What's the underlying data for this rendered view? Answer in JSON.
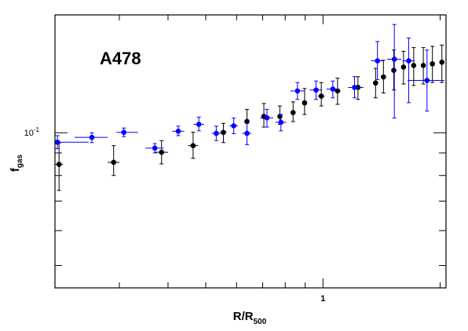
{
  "chart_data": {
    "type": "scatter",
    "title": "A478",
    "xlabel": {
      "main": "R/R",
      "sub": "500"
    },
    "ylabel": {
      "main": "f",
      "sub": "gas"
    },
    "x_scale": "log",
    "y_scale": "log",
    "xlim": [
      0.205,
      2.07
    ],
    "ylim": [
      0.0445,
      0.185
    ],
    "x_ticks": [
      {
        "value": 1,
        "label": "1"
      }
    ],
    "y_ticks": [
      {
        "value": 0.1,
        "label": "10",
        "exp": "-1"
      }
    ],
    "grid": false,
    "series": [
      {
        "color": "#000000",
        "points": [
          {
            "x": 0.21,
            "xlo": 0.205,
            "xhi": 0.215,
            "y": 0.0848,
            "ylo": 0.074,
            "yhi": 0.0948
          },
          {
            "x": 0.29,
            "xlo": 0.28,
            "xhi": 0.3,
            "y": 0.0857,
            "ylo": 0.08,
            "yhi": 0.0935
          },
          {
            "x": 0.385,
            "xlo": 0.37,
            "xhi": 0.4,
            "y": 0.0903,
            "ylo": 0.085,
            "yhi": 0.096
          },
          {
            "x": 0.464,
            "xlo": 0.45,
            "xhi": 0.478,
            "y": 0.0935,
            "ylo": 0.0875,
            "yhi": 0.1003
          },
          {
            "x": 0.555,
            "xlo": 0.545,
            "xhi": 0.565,
            "y": 0.1002,
            "ylo": 0.095,
            "yhi": 0.105
          },
          {
            "x": 0.638,
            "xlo": 0.628,
            "xhi": 0.648,
            "y": 0.1061,
            "ylo": 0.099,
            "yhi": 0.113
          },
          {
            "x": 0.705,
            "xlo": 0.695,
            "xhi": 0.715,
            "y": 0.1089,
            "ylo": 0.103,
            "yhi": 0.1165
          },
          {
            "x": 0.775,
            "xlo": 0.765,
            "xhi": 0.785,
            "y": 0.1089,
            "ylo": 0.1045,
            "yhi": 0.115
          },
          {
            "x": 0.838,
            "xlo": 0.828,
            "xhi": 0.848,
            "y": 0.1111,
            "ylo": 0.106,
            "yhi": 0.1175
          },
          {
            "x": 0.897,
            "xlo": 0.887,
            "xhi": 0.907,
            "y": 0.1169,
            "ylo": 0.11,
            "yhi": 0.126
          },
          {
            "x": 0.99,
            "xlo": 0.97,
            "xhi": 1.01,
            "y": 0.1211,
            "ylo": 0.115,
            "yhi": 0.13
          },
          {
            "x": 1.09,
            "xlo": 1.07,
            "xhi": 1.11,
            "y": 0.1244,
            "ylo": 0.116,
            "yhi": 0.133
          },
          {
            "x": 1.23,
            "xlo": 1.19,
            "xhi": 1.27,
            "y": 0.1267,
            "ylo": 0.119,
            "yhi": 0.134
          },
          {
            "x": 1.365,
            "xlo": 1.345,
            "xhi": 1.385,
            "y": 0.1297,
            "ylo": 0.12,
            "yhi": 0.14
          },
          {
            "x": 1.43,
            "xlo": 1.41,
            "xhi": 1.45,
            "y": 0.1338,
            "ylo": 0.123,
            "yhi": 0.146
          },
          {
            "x": 1.52,
            "xlo": 1.5,
            "xhi": 1.54,
            "y": 0.1385,
            "ylo": 0.125,
            "yhi": 0.154
          },
          {
            "x": 1.61,
            "xlo": 1.59,
            "xhi": 1.63,
            "y": 0.1409,
            "ylo": 0.129,
            "yhi": 0.153
          },
          {
            "x": 1.71,
            "xlo": 1.69,
            "xhi": 1.73,
            "y": 0.1421,
            "ylo": 0.128,
            "yhi": 0.156
          },
          {
            "x": 1.81,
            "xlo": 1.79,
            "xhi": 1.83,
            "y": 0.1421,
            "ylo": 0.129,
            "yhi": 0.156
          },
          {
            "x": 1.91,
            "xlo": 1.89,
            "xhi": 1.93,
            "y": 0.1433,
            "ylo": 0.13,
            "yhi": 0.157
          },
          {
            "x": 2.02,
            "xlo": 1.99,
            "xhi": 2.05,
            "y": 0.1445,
            "ylo": 0.13,
            "yhi": 0.158
          }
        ]
      },
      {
        "color": "#0000ff",
        "points": [
          {
            "x": 0.208,
            "xlo": 0.205,
            "xhi": 0.25,
            "y": 0.0952,
            "ylo": 0.092,
            "yhi": 0.0985
          },
          {
            "x": 0.255,
            "xlo": 0.23,
            "xhi": 0.28,
            "y": 0.0976,
            "ylo": 0.095,
            "yhi": 0.1
          },
          {
            "x": 0.308,
            "xlo": 0.295,
            "xhi": 0.335,
            "y": 0.1002,
            "ylo": 0.098,
            "yhi": 0.1025
          },
          {
            "x": 0.37,
            "xlo": 0.35,
            "xhi": 0.39,
            "y": 0.0923,
            "ylo": 0.09,
            "yhi": 0.0945
          },
          {
            "x": 0.425,
            "xlo": 0.41,
            "xhi": 0.44,
            "y": 0.1008,
            "ylo": 0.0985,
            "yhi": 0.1035
          },
          {
            "x": 0.48,
            "xlo": 0.465,
            "xhi": 0.495,
            "y": 0.1045,
            "ylo": 0.101,
            "yhi": 0.1085
          },
          {
            "x": 0.532,
            "xlo": 0.518,
            "xhi": 0.546,
            "y": 0.0997,
            "ylo": 0.096,
            "yhi": 0.1035
          },
          {
            "x": 0.59,
            "xlo": 0.575,
            "xhi": 0.605,
            "y": 0.1037,
            "ylo": 0.0995,
            "yhi": 0.108
          },
          {
            "x": 0.638,
            "xlo": 0.62,
            "xhi": 0.655,
            "y": 0.0997,
            "ylo": 0.094,
            "yhi": 0.105
          },
          {
            "x": 0.718,
            "xlo": 0.69,
            "xhi": 0.745,
            "y": 0.1081,
            "ylo": 0.103,
            "yhi": 0.113
          },
          {
            "x": 0.78,
            "xlo": 0.755,
            "xhi": 0.805,
            "y": 0.1056,
            "ylo": 0.101,
            "yhi": 0.11
          },
          {
            "x": 0.86,
            "xlo": 0.825,
            "xhi": 0.895,
            "y": 0.1244,
            "ylo": 0.119,
            "yhi": 0.13
          },
          {
            "x": 0.96,
            "xlo": 0.925,
            "xhi": 0.995,
            "y": 0.125,
            "ylo": 0.119,
            "yhi": 0.131
          },
          {
            "x": 1.06,
            "xlo": 1.02,
            "xhi": 1.1,
            "y": 0.1256,
            "ylo": 0.12,
            "yhi": 0.131
          },
          {
            "x": 1.205,
            "xlo": 1.16,
            "xhi": 1.25,
            "y": 0.1267,
            "ylo": 0.12,
            "yhi": 0.134
          },
          {
            "x": 1.38,
            "xlo": 1.33,
            "xhi": 1.43,
            "y": 0.1456,
            "ylo": 0.132,
            "yhi": 0.161
          },
          {
            "x": 1.525,
            "xlo": 1.46,
            "xhi": 1.59,
            "y": 0.1468,
            "ylo": 0.108,
            "yhi": 0.176
          },
          {
            "x": 1.66,
            "xlo": 1.6,
            "xhi": 1.72,
            "y": 0.1456,
            "ylo": 0.117,
            "yhi": 0.164
          },
          {
            "x": 1.85,
            "xlo": 1.65,
            "xhi": 2.05,
            "y": 0.1314,
            "ylo": 0.112,
            "yhi": 0.154
          }
        ]
      }
    ]
  }
}
